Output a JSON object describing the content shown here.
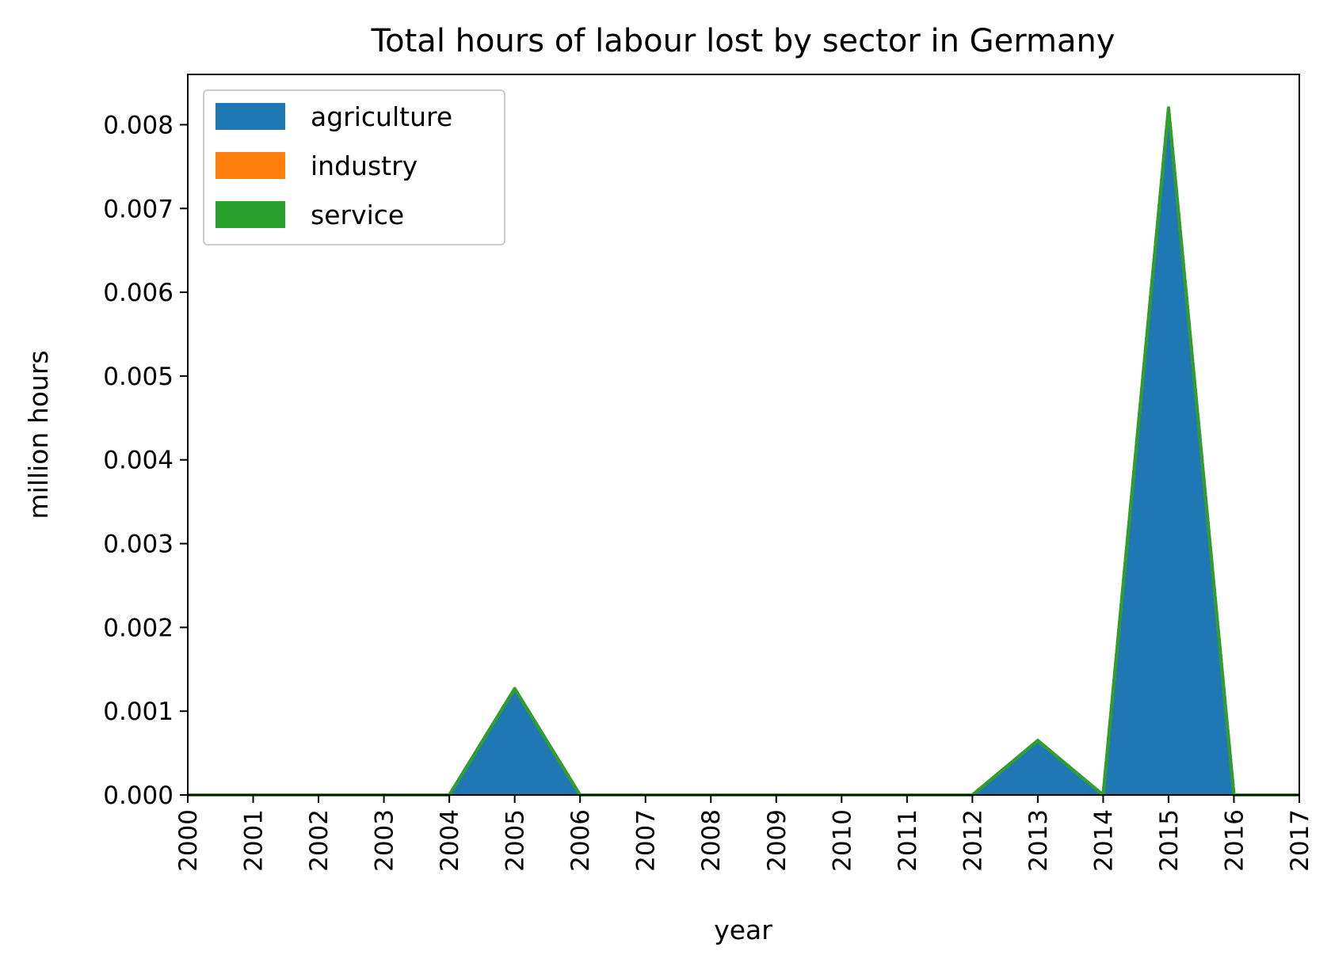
{
  "chart_data": {
    "type": "area",
    "stacked": true,
    "title": "Total hours of labour lost by sector in Germany",
    "xlabel": "year",
    "ylabel": "million hours",
    "x": [
      2000,
      2001,
      2002,
      2003,
      2004,
      2005,
      2006,
      2007,
      2008,
      2009,
      2010,
      2011,
      2012,
      2013,
      2014,
      2015,
      2016,
      2017
    ],
    "series": [
      {
        "name": "agriculture",
        "color": "#1f77b4",
        "values": [
          0,
          0,
          0,
          0,
          0,
          0.00127,
          0,
          0,
          0,
          0,
          0,
          0,
          0,
          0.00065,
          0,
          0.0082,
          0,
          0
        ]
      },
      {
        "name": "industry",
        "color": "#ff7f0e",
        "values": [
          0,
          0,
          0,
          0,
          0,
          0,
          0,
          0,
          0,
          0,
          0,
          0,
          0,
          0,
          0,
          0,
          0,
          0
        ]
      },
      {
        "name": "service",
        "color": "#2ca02c",
        "values": [
          0,
          0,
          0,
          0,
          0,
          0,
          0,
          0,
          0,
          0,
          0,
          0,
          0,
          0,
          0,
          0,
          0,
          0
        ]
      }
    ],
    "xlim": [
      2000,
      2017
    ],
    "ylim": [
      0,
      0.0086
    ],
    "yticks": [
      "0.000",
      "0.001",
      "0.002",
      "0.003",
      "0.004",
      "0.005",
      "0.006",
      "0.007",
      "0.008"
    ],
    "ytick_values": [
      0,
      0.001,
      0.002,
      0.003,
      0.004,
      0.005,
      0.006,
      0.007,
      0.008
    ],
    "xticks": [
      "2000",
      "2001",
      "2002",
      "2003",
      "2004",
      "2005",
      "2006",
      "2007",
      "2008",
      "2009",
      "2010",
      "2011",
      "2012",
      "2013",
      "2014",
      "2015",
      "2016",
      "2017"
    ],
    "legend_position": "upper-left",
    "grid": false
  }
}
